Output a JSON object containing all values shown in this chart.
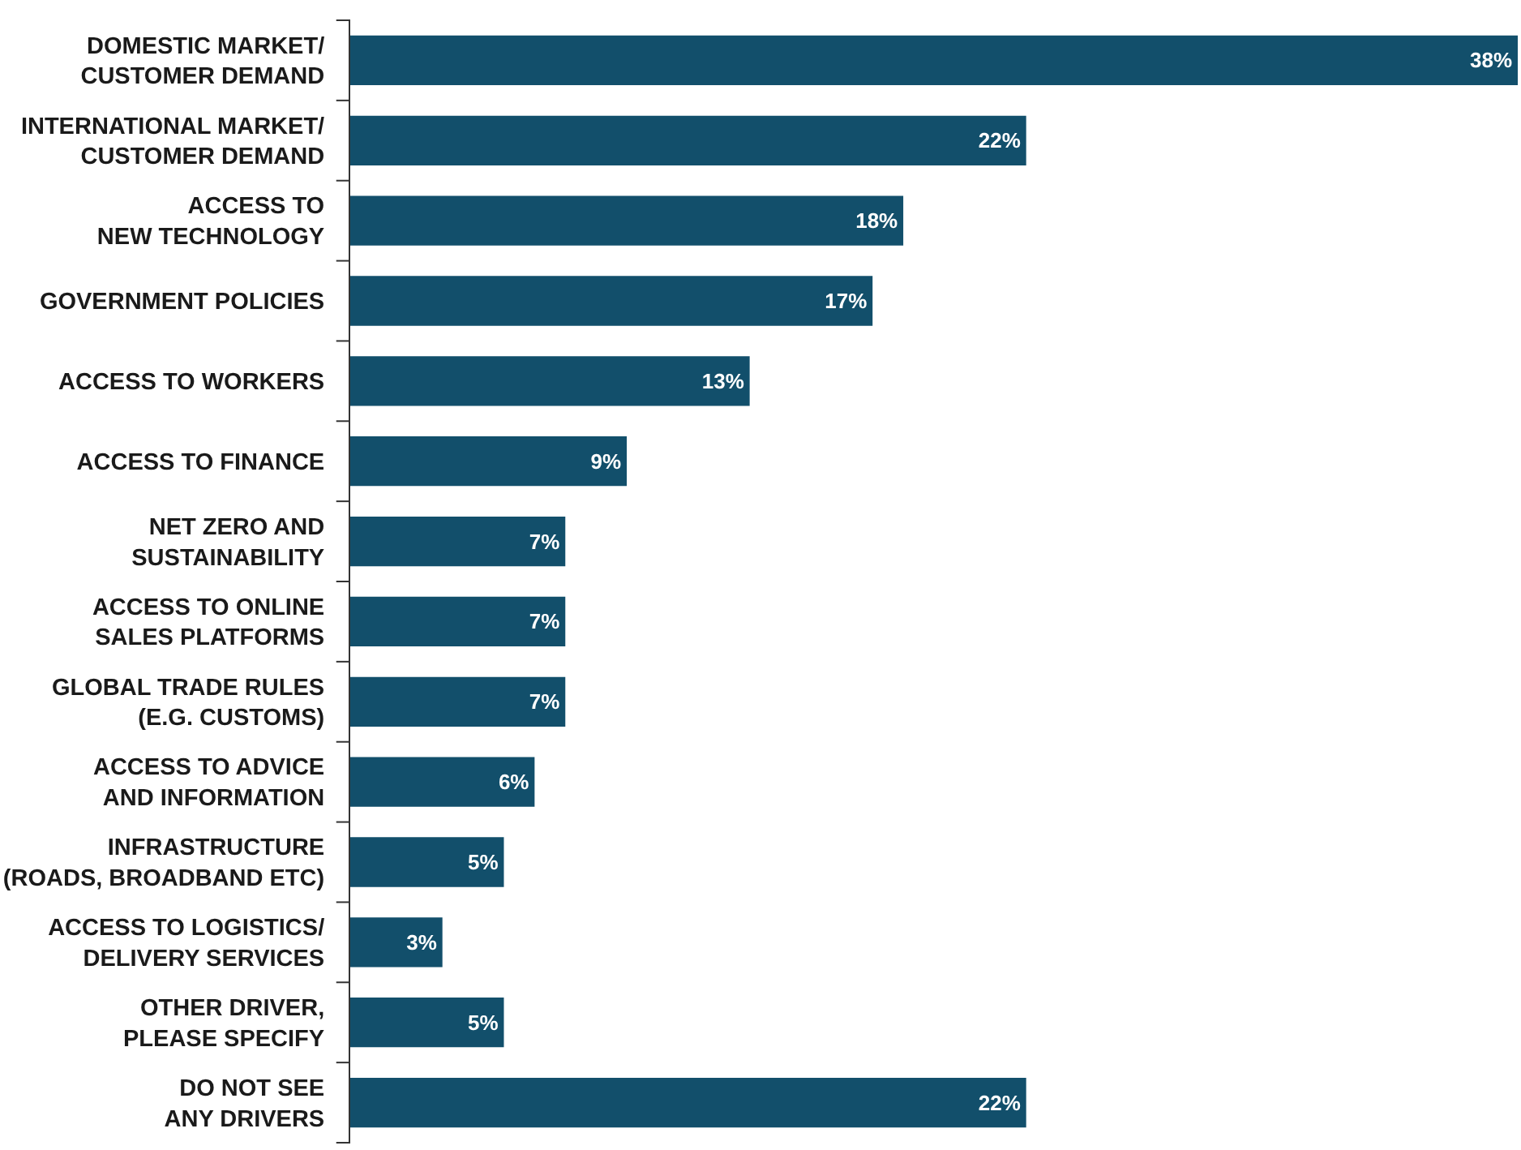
{
  "chart_data": {
    "type": "bar",
    "orientation": "horizontal",
    "categories": [
      "DOMESTIC MARKET/\nCUSTOMER DEMAND",
      "INTERNATIONAL MARKET/\nCUSTOMER DEMAND",
      "ACCESS TO\nNEW TECHNOLOGY",
      "GOVERNMENT POLICIES",
      "ACCESS TO WORKERS",
      "ACCESS TO FINANCE",
      "NET ZERO AND\nSUSTAINABILITY",
      "ACCESS TO ONLINE\nSALES PLATFORMS",
      "GLOBAL TRADE RULES\n(E.G. CUSTOMS)",
      "ACCESS TO ADVICE\nAND INFORMATION",
      "INFRASTRUCTURE\n(ROADS, BROADBAND ETC)",
      "ACCESS TO LOGISTICS/\nDELIVERY SERVICES",
      "OTHER DRIVER,\nPLEASE SPECIFY",
      "DO NOT SEE\nANY DRIVERS"
    ],
    "values": [
      38,
      22,
      18,
      17,
      13,
      9,
      7,
      7,
      7,
      6,
      5,
      3,
      5,
      22
    ],
    "value_labels": [
      "38%",
      "22%",
      "18%",
      "17%",
      "13%",
      "9%",
      "7%",
      "7%",
      "7%",
      "6%",
      "5%",
      "3%",
      "5%",
      "22%"
    ],
    "color": "#124f6b"
  }
}
